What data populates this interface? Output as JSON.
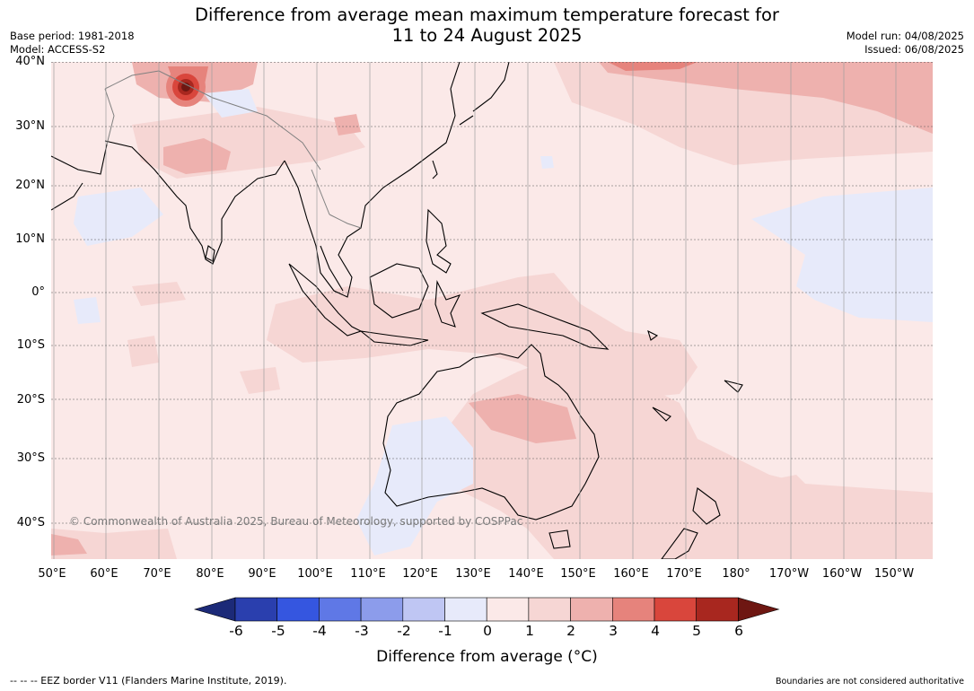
{
  "title": {
    "line1": "Difference from average mean maximum temperature forecast for",
    "line2": "11 to 24 August 2025"
  },
  "meta": {
    "base_period": "Base period: 1981-2018",
    "model": "Model: ACCESS-S2",
    "model_run": "Model run: 04/08/2025",
    "issued": "Issued: 06/08/2025"
  },
  "map": {
    "lat_labels": [
      "40°N",
      "30°N",
      "20°N",
      "10°N",
      "0°",
      "10°S",
      "20°S",
      "30°S",
      "40°S"
    ],
    "lon_labels": [
      "50°E",
      "60°E",
      "70°E",
      "80°E",
      "90°E",
      "100°E",
      "110°E",
      "120°E",
      "130°E",
      "140°E",
      "150°E",
      "160°E",
      "170°E",
      "180°",
      "170°W",
      "160°W",
      "150°W"
    ],
    "copyright": "© Commonwealth of Australia 2025, Bureau of Meteorology, supported by COSPPac"
  },
  "colorbar": {
    "ticks": [
      "-6",
      "-5",
      "-4",
      "-3",
      "-2",
      "-1",
      "0",
      "1",
      "2",
      "3",
      "4",
      "5",
      "6"
    ],
    "colors": [
      "#1c2a78",
      "#2a3fae",
      "#3556e0",
      "#5f78e6",
      "#8c9ceb",
      "#bfc6f3",
      "#e7eafa",
      "#fbe9e8",
      "#f6d6d4",
      "#eeb1ae",
      "#e6837c",
      "#d9463c",
      "#a8271f",
      "#6e1712"
    ],
    "label": "Difference from average (°C)"
  },
  "footer": {
    "eez": "--  --  -- EEZ border V11 (Flanders Marine Institute, 2019).",
    "disclaimer": "Boundaries are not considered authoritative"
  }
}
